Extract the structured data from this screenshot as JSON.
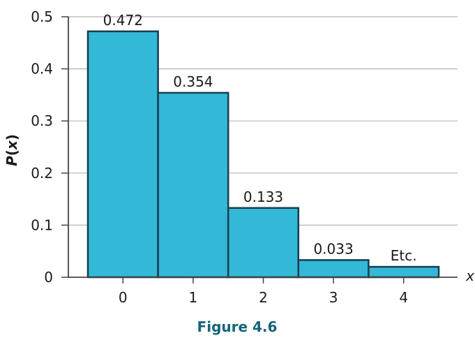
{
  "chart_data": {
    "type": "bar",
    "categories": [
      "0",
      "1",
      "2",
      "3",
      "4"
    ],
    "values": [
      0.472,
      0.354,
      0.133,
      0.033,
      0.02
    ],
    "data_labels": [
      "0.472",
      "0.354",
      "0.133",
      "0.033",
      "Etc."
    ],
    "xlabel": "x",
    "ylabel_main": "P",
    "ylabel_paren_open": "(",
    "ylabel_var": "x",
    "ylabel_paren_close": ")",
    "ylim": [
      0,
      0.5
    ],
    "yticks": [
      0,
      0.1,
      0.2,
      0.3,
      0.4,
      0.5
    ],
    "ytick_labels": [
      "0",
      "0.1",
      "0.2",
      "0.3",
      "0.4",
      "0.5"
    ],
    "grid": true,
    "caption": "Figure 4.6",
    "colors": {
      "bar_fill": "#33b8d8",
      "bar_stroke": "#173d4c",
      "grid": "#b5b5b5",
      "axis": "#444444",
      "caption": "#15637a"
    }
  }
}
